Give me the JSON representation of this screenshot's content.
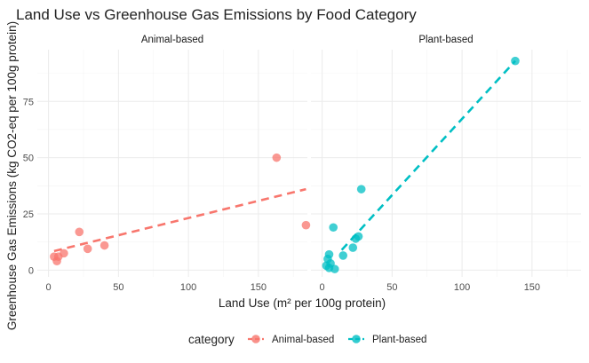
{
  "chart_data": {
    "type": "scatter",
    "title": "Land Use vs Greenhouse Gas Emissions by Food Category",
    "xlabel": "Land Use (m² per 100g protein)",
    "ylabel": "Greenhouse Gas Emissions (kg CO2-eq per 100g protein)",
    "xlim": [
      -8,
      185
    ],
    "ylim": [
      -3,
      98
    ],
    "x_ticks": [
      0,
      50,
      100,
      150
    ],
    "y_ticks": [
      0,
      25,
      50,
      75
    ],
    "grid": true,
    "legend": {
      "title": "category",
      "position": "bottom"
    },
    "facets": [
      {
        "name": "Animal-based",
        "color": "#F8766D",
        "points": [
          {
            "x": 4,
            "y": 6
          },
          {
            "x": 6,
            "y": 4
          },
          {
            "x": 7,
            "y": 6
          },
          {
            "x": 11,
            "y": 7.5
          },
          {
            "x": 22,
            "y": 17
          },
          {
            "x": 28,
            "y": 9.5
          },
          {
            "x": 40,
            "y": 11
          },
          {
            "x": 163,
            "y": 50
          },
          {
            "x": 184,
            "y": 20
          }
        ],
        "trend": {
          "x": [
            4,
            184
          ],
          "y": [
            8.5,
            36
          ]
        }
      },
      {
        "name": "Plant-based",
        "color": "#00BFC4",
        "points": [
          {
            "x": 3,
            "y": 2
          },
          {
            "x": 4,
            "y": 5
          },
          {
            "x": 5,
            "y": 1
          },
          {
            "x": 5,
            "y": 7
          },
          {
            "x": 6,
            "y": 3
          },
          {
            "x": 8,
            "y": 19
          },
          {
            "x": 9,
            "y": 0.5
          },
          {
            "x": 15,
            "y": 6.5
          },
          {
            "x": 22,
            "y": 10
          },
          {
            "x": 24,
            "y": 14
          },
          {
            "x": 26,
            "y": 15
          },
          {
            "x": 28,
            "y": 36
          },
          {
            "x": 138,
            "y": 93
          }
        ],
        "trend": {
          "x": [
            14,
            138
          ],
          "y": [
            9,
            93
          ]
        }
      }
    ]
  }
}
